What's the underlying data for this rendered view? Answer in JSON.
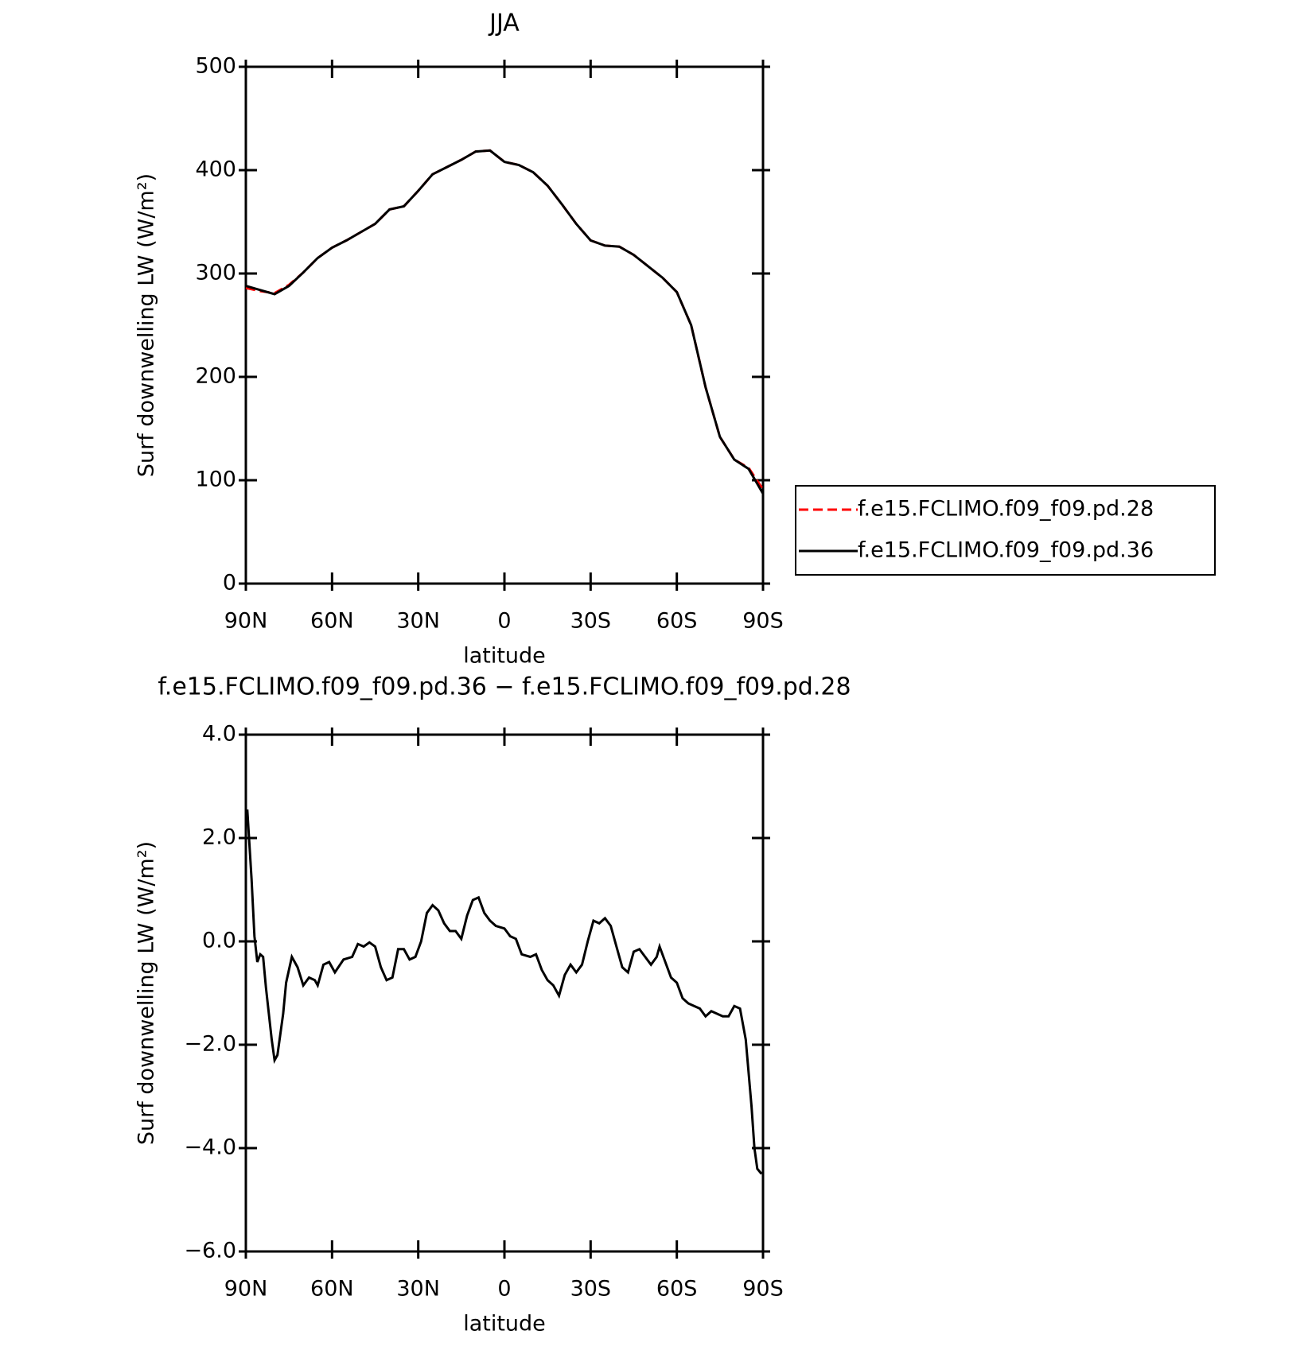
{
  "chart_data": [
    {
      "type": "line",
      "title": "JJA",
      "xlabel": "latitude",
      "ylabel": "Surf downwelling LW (W/m²)",
      "x": [
        90,
        85,
        80,
        75,
        70,
        65,
        60,
        55,
        50,
        45,
        40,
        35,
        30,
        25,
        20,
        15,
        10,
        5,
        0,
        -5,
        -10,
        -15,
        -20,
        -25,
        -30,
        -35,
        -40,
        -45,
        -50,
        -55,
        -60,
        -65,
        -70,
        -75,
        -80,
        -85,
        -90
      ],
      "series": [
        {
          "name": "f.e15.FCLIMO.f09_f09.pd.28",
          "color": "#ff0000",
          "line_style": "dashed",
          "values": [
            286,
            283,
            281,
            289,
            301,
            315,
            325,
            332,
            340,
            348,
            362,
            365,
            380,
            396,
            403,
            410,
            418,
            419,
            408,
            405,
            398,
            385,
            367,
            348,
            332,
            327,
            326,
            318,
            307,
            296,
            282,
            250,
            190,
            142,
            120,
            112,
            91
          ]
        },
        {
          "name": "f.e15.FCLIMO.f09_f09.pd.36",
          "color": "#000000",
          "line_style": "solid",
          "values": [
            288,
            284,
            280,
            288,
            301,
            315,
            325,
            332,
            340,
            348,
            362,
            365,
            380,
            396,
            403,
            410,
            418,
            419,
            408,
            405,
            398,
            385,
            367,
            348,
            332,
            327,
            326,
            318,
            307,
            296,
            282,
            250,
            190,
            142,
            120,
            111,
            87
          ]
        }
      ],
      "xlim": [
        90,
        -90
      ],
      "xticks": [
        {
          "value": 90,
          "label": "90N"
        },
        {
          "value": 60,
          "label": "60N"
        },
        {
          "value": 30,
          "label": "30N"
        },
        0,
        {
          "value": -30,
          "label": "30S"
        },
        {
          "value": -60,
          "label": "60S"
        },
        {
          "value": -90,
          "label": "90S"
        }
      ],
      "ylim": [
        0,
        500
      ],
      "yticks": [
        0,
        100,
        200,
        300,
        400,
        500
      ],
      "legend": "right"
    },
    {
      "type": "line",
      "title": "f.e15.FCLIMO.f09_f09.pd.36 − f.e15.FCLIMO.f09_f09.pd.28",
      "xlabel": "latitude",
      "ylabel": "Surf downwelling LW (W/m²)",
      "x": [
        89.5,
        88,
        87,
        86,
        85,
        84,
        83,
        81,
        80,
        79,
        77,
        76,
        74,
        72,
        70,
        68,
        66,
        65,
        63,
        61,
        59,
        56,
        53,
        51,
        49,
        47,
        45,
        43,
        41,
        39,
        37,
        35,
        33,
        31,
        29,
        27,
        25,
        23,
        21,
        19,
        17,
        15,
        13,
        11,
        9,
        7,
        5,
        3,
        0,
        -2,
        -4,
        -6,
        -9,
        -11,
        -13,
        -15,
        -17,
        -19,
        -21,
        -23,
        -25,
        -27,
        -29,
        -31,
        -33,
        -35,
        -37,
        -39,
        -41,
        -43,
        -45,
        -47,
        -49,
        -51,
        -53,
        -54,
        -56,
        -58,
        -60,
        -62,
        -64,
        -66,
        -68,
        -70,
        -72,
        -74,
        -76,
        -78,
        -80,
        -82,
        -84,
        -86,
        -87,
        -88,
        -89.5
      ],
      "values": [
        2.55,
        1.2,
        0.1,
        -0.4,
        -0.25,
        -0.3,
        -0.9,
        -1.9,
        -2.3,
        -2.2,
        -1.4,
        -0.8,
        -0.3,
        -0.5,
        -0.85,
        -0.7,
        -0.75,
        -0.85,
        -0.45,
        -0.4,
        -0.6,
        -0.35,
        -0.3,
        -0.05,
        -0.1,
        -0.02,
        -0.1,
        -0.5,
        -0.75,
        -0.7,
        -0.15,
        -0.15,
        -0.35,
        -0.3,
        0.0,
        0.55,
        0.7,
        0.6,
        0.35,
        0.2,
        0.2,
        0.05,
        0.5,
        0.8,
        0.85,
        0.55,
        0.4,
        0.3,
        0.25,
        0.1,
        0.05,
        -0.25,
        -0.3,
        -0.25,
        -0.55,
        -0.75,
        -0.85,
        -1.05,
        -0.65,
        -0.45,
        -0.6,
        -0.45,
        0.0,
        0.4,
        0.35,
        0.45,
        0.3,
        -0.1,
        -0.5,
        -0.6,
        -0.2,
        -0.15,
        -0.3,
        -0.45,
        -0.3,
        -0.1,
        -0.4,
        -0.7,
        -0.8,
        -1.1,
        -1.2,
        -1.25,
        -1.3,
        -1.45,
        -1.35,
        -1.4,
        -1.45,
        -1.45,
        -1.25,
        -1.3,
        -1.9,
        -3.2,
        -4.0,
        -4.4,
        -4.5
      ],
      "color": "#000000",
      "xlim": [
        90,
        -90
      ],
      "xticks": [
        {
          "value": 90,
          "label": "90N"
        },
        {
          "value": 60,
          "label": "60N"
        },
        {
          "value": 30,
          "label": "30N"
        },
        0,
        {
          "value": -30,
          "label": "30S"
        },
        {
          "value": -60,
          "label": "60S"
        },
        {
          "value": -90,
          "label": "90S"
        }
      ],
      "ylim": [
        -6,
        4
      ],
      "yticks": [
        {
          "value": -6,
          "label": "−6.0"
        },
        {
          "value": -4,
          "label": "−4.0"
        },
        {
          "value": -2,
          "label": "−2.0"
        },
        {
          "value": 0,
          "label": "0.0"
        },
        {
          "value": 2,
          "label": "2.0"
        },
        {
          "value": 4,
          "label": "4.0"
        }
      ]
    }
  ]
}
